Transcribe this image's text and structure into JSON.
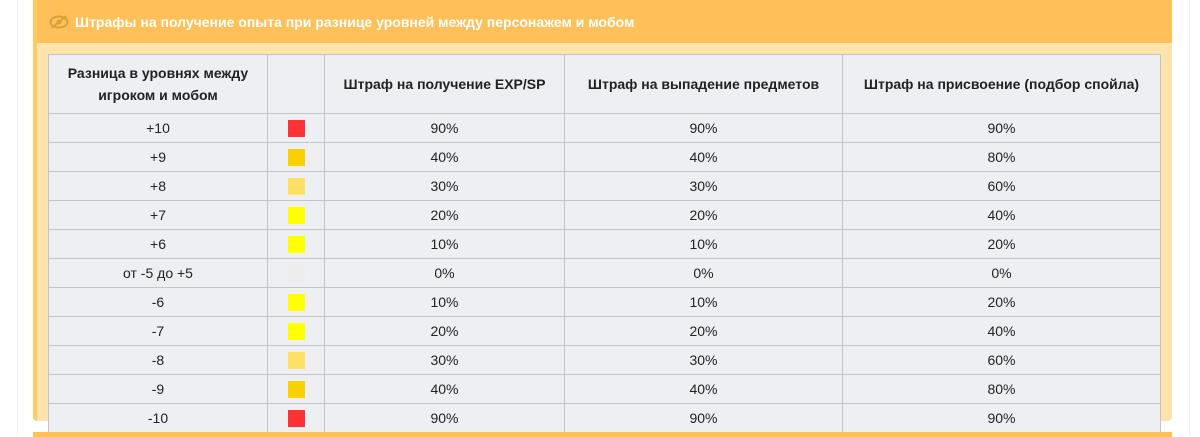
{
  "panel": {
    "title": "Штрафы на получение опыта при разнице уровней между персонажем и мобом",
    "icon": "eye-slash-icon"
  },
  "table": {
    "headers": [
      "Разница в уровнях между игроком и мобом",
      "",
      "Штраф на получение EXP/SP",
      "Штраф на выпадение предметов",
      "Штраф на присвоение (подбор спойла)"
    ],
    "rows": [
      {
        "diff": "+10",
        "color": "#ff3333",
        "exp": "90%",
        "drop": "90%",
        "spoil": "90%"
      },
      {
        "diff": "+9",
        "color": "#fbd000",
        "exp": "40%",
        "drop": "40%",
        "spoil": "80%"
      },
      {
        "diff": "+8",
        "color": "#ffe066",
        "exp": "30%",
        "drop": "30%",
        "spoil": "60%"
      },
      {
        "diff": "+7",
        "color": "#ffff00",
        "exp": "20%",
        "drop": "20%",
        "spoil": "40%"
      },
      {
        "diff": "+6",
        "color": "#ffff00",
        "exp": "10%",
        "drop": "10%",
        "spoil": "20%"
      },
      {
        "diff": "от -5 до +5",
        "color": "#ededed",
        "exp": "0%",
        "drop": "0%",
        "spoil": "0%"
      },
      {
        "diff": "-6",
        "color": "#ffff00",
        "exp": "10%",
        "drop": "10%",
        "spoil": "20%"
      },
      {
        "diff": "-7",
        "color": "#ffff00",
        "exp": "20%",
        "drop": "20%",
        "spoil": "40%"
      },
      {
        "diff": "-8",
        "color": "#ffe066",
        "exp": "30%",
        "drop": "30%",
        "spoil": "60%"
      },
      {
        "diff": "-9",
        "color": "#fbd000",
        "exp": "40%",
        "drop": "40%",
        "spoil": "80%"
      },
      {
        "diff": "-10",
        "color": "#ff3333",
        "exp": "90%",
        "drop": "90%",
        "spoil": "90%"
      }
    ]
  }
}
